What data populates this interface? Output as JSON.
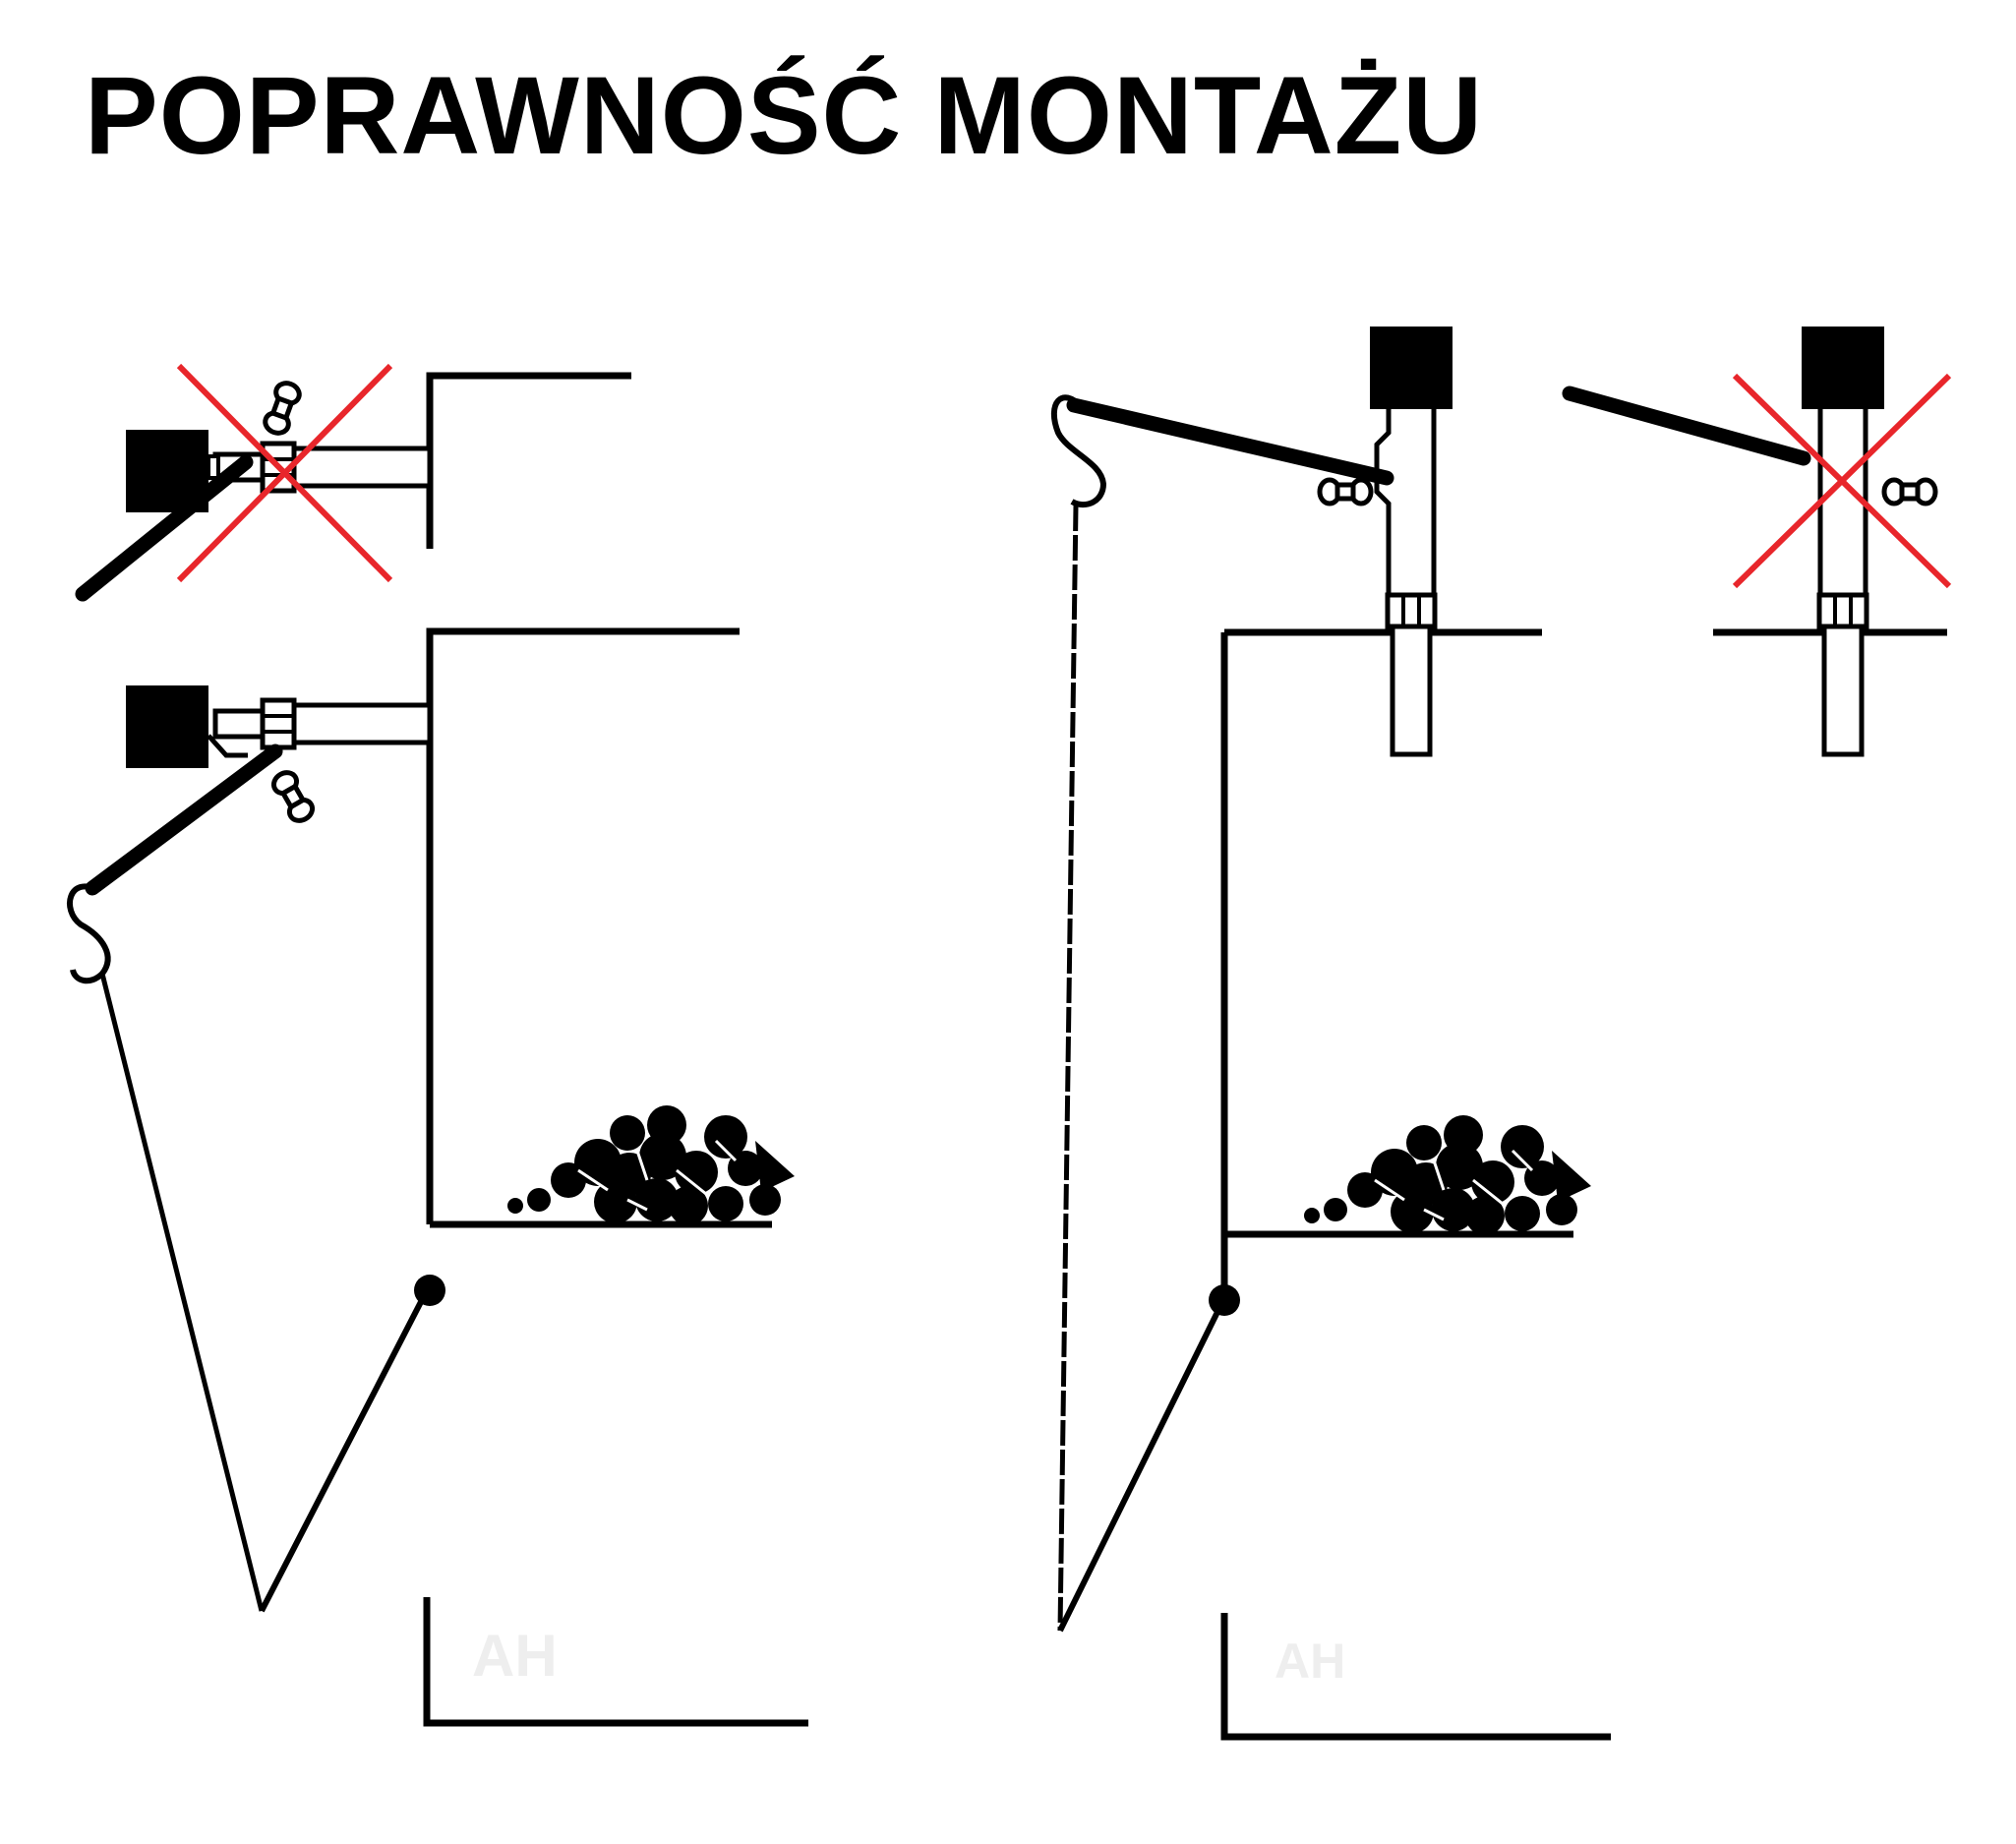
{
  "title": "POPRAWNOŚĆ MONTAŻU",
  "watermarks": [
    "AH",
    "AH"
  ],
  "colors": {
    "ink": "#000000",
    "wrong_mark": "#e8262b",
    "watermark": "#eeeeee"
  },
  "panels": [
    {
      "name": "side-view",
      "wrong_example": "top",
      "correct_example": "bottom"
    },
    {
      "name": "front-view",
      "wrong_example": "right",
      "correct_example": "left"
    }
  ]
}
